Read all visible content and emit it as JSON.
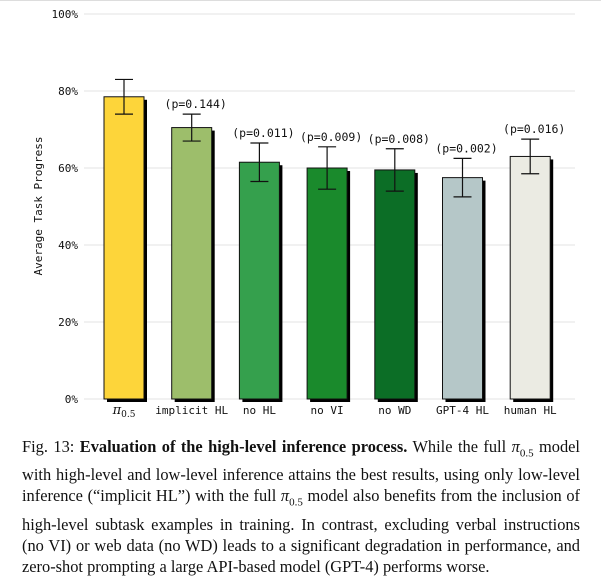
{
  "chart_data": {
    "type": "bar",
    "categories": [
      "π0.5",
      "implicit HL",
      "no HL",
      "no VI",
      "no WD",
      "GPT-4 HL",
      "human HL"
    ],
    "values": [
      78.5,
      70.5,
      61.5,
      60.0,
      59.5,
      57.5,
      63.0
    ],
    "error": [
      4.5,
      3.5,
      5.0,
      5.5,
      5.5,
      5.0,
      4.5
    ],
    "p_values": [
      "",
      "(p=0.144)",
      "(p=0.011)",
      "(p=0.009)",
      "(p=0.008)",
      "(p=0.002)",
      "(p=0.016)"
    ],
    "colors": [
      "#fdd53a",
      "#9dbe6b",
      "#35a04d",
      "#1a8a2c",
      "#0c6e26",
      "#b5c7c8",
      "#ebebe3"
    ],
    "ylabel": "Average Task Progress",
    "yticks": [
      "0%",
      "20%",
      "40%",
      "60%",
      "80%",
      "100%"
    ],
    "ylim": [
      0,
      100
    ]
  },
  "caption": {
    "label": "Fig. 13: ",
    "title": "Evaluation of the high-level inference process.",
    "p1": " While the full ",
    "pi": "π",
    "sub": "0.5",
    "p2": " model with high-level and low-level inference attains the best results, using only low-level inference (“implicit HL”) with the full ",
    "p3": " model also benefits from the inclusion of high-level subtask examples in training. In contrast, excluding verbal instructions (no VI) or web data (no WD) leads to a significant degradation in performance, and zero-shot prompting a large API-based model (GPT-4) performs worse."
  }
}
